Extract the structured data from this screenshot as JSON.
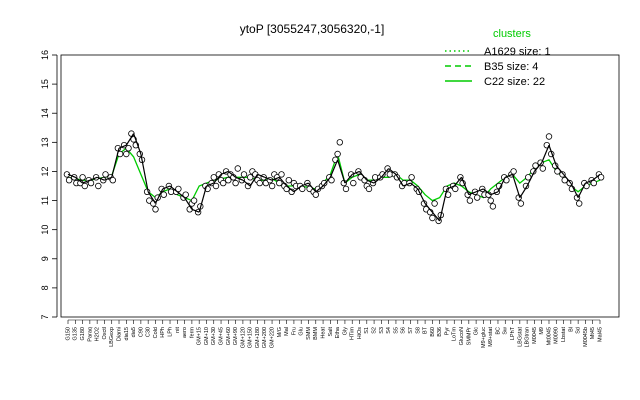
{
  "chart_data": {
    "type": "line",
    "title": "ytoP [3055247,3056320,-1]",
    "xlabel": "",
    "ylabel": "",
    "ylim": [
      7,
      16
    ],
    "yticks": [
      7,
      8,
      9,
      10,
      11,
      12,
      13,
      14,
      15,
      16
    ],
    "grid": false,
    "legend": {
      "title": "clusters",
      "placement": "top-right",
      "color": "#00cc00",
      "entries": [
        {
          "label": "A1629 size: 1",
          "style": "dotted"
        },
        {
          "label": "B35 size: 4",
          "style": "dashed"
        },
        {
          "label": "C22 size: 22",
          "style": "solid"
        }
      ]
    },
    "categories": [
      "G150",
      "G135",
      "G180",
      "Paraq",
      "H2O2",
      "Oxctl",
      "LBGexp",
      "Diami",
      "dia15",
      "dia5",
      "C90",
      "C30",
      "Cold",
      "HPh",
      "LPh",
      "nit",
      "aero",
      "ferm",
      "GM+15",
      "GM+10",
      "GM+30",
      "GM+45",
      "GM+60",
      "GM+90",
      "GM+120",
      "GM+150",
      "GM+180",
      "GM+200",
      "GM+220",
      "M/G",
      "Mal",
      "Fru",
      "Glu",
      "SMM",
      "BMM",
      "Heat",
      "Salt",
      "Etha",
      "Gly",
      "HTim",
      "HiOs",
      "S1",
      "S2",
      "S3",
      "S4",
      "S5",
      "S6",
      "S7",
      "S8",
      "BT",
      "B60",
      "B36",
      "Pyr",
      "LoTm",
      "GlucoN",
      "SMMPr",
      "Glc",
      "M9+gluc",
      "M9+stat",
      "BC",
      "Sw",
      "LPhT",
      "LBGstat",
      "LBGtran",
      "M0045",
      "M9",
      "Mt0045",
      "M0090",
      "Lbstat",
      "Bl",
      "Sd",
      "M0045b",
      "Mt45",
      "Mal45"
    ],
    "series": [
      {
        "name": "C22",
        "values": [
          11.8,
          11.75,
          11.7,
          11.7,
          11.75,
          11.8,
          11.85,
          12.6,
          12.8,
          12.5,
          11.9,
          11.3,
          11.1,
          11.3,
          11.4,
          11.2,
          11.1,
          11.0,
          11.5,
          11.6,
          11.7,
          11.75,
          11.8,
          11.8,
          11.8,
          11.8,
          11.7,
          11.7,
          11.75,
          11.6,
          11.5,
          11.5,
          11.5,
          11.45,
          11.4,
          11.6,
          11.9,
          12.6,
          11.6,
          11.8,
          11.9,
          11.7,
          11.7,
          11.8,
          11.8,
          11.9,
          11.7,
          11.7,
          11.5,
          11.2,
          11.0,
          11.1,
          11.5,
          11.6,
          11.5,
          11.3,
          11.2,
          11.1,
          11.4,
          11.6,
          11.8,
          11.9,
          11.6,
          11.8,
          12.1,
          12.3,
          12.4,
          12.0,
          11.8,
          11.5,
          11.3,
          11.5,
          11.6,
          11.7
        ]
      }
    ],
    "points": [
      {
        "label": "G150",
        "values": [
          11.9,
          11.7
        ]
      },
      {
        "label": "G135",
        "values": [
          11.8,
          11.6
        ]
      },
      {
        "label": "G180",
        "values": [
          11.6,
          11.8,
          11.5
        ]
      },
      {
        "label": "Paraq",
        "values": [
          11.7,
          11.6
        ]
      },
      {
        "label": "H2O2",
        "values": [
          11.8,
          11.5
        ]
      },
      {
        "label": "Oxctl",
        "values": [
          11.7,
          11.9
        ]
      },
      {
        "label": "LBGexp",
        "values": [
          11.8,
          11.7
        ]
      },
      {
        "label": "Diami",
        "values": [
          12.8,
          12.6
        ]
      },
      {
        "label": "dia15",
        "values": [
          12.9,
          12.6,
          12.8
        ]
      },
      {
        "label": "dia5",
        "values": [
          13.3,
          13.1,
          12.9
        ]
      },
      {
        "label": "C90",
        "values": [
          12.6,
          12.4
        ]
      },
      {
        "label": "C30",
        "values": [
          11.3,
          11.0
        ]
      },
      {
        "label": "Cold",
        "values": [
          10.9,
          10.7,
          11.1
        ]
      },
      {
        "label": "HPh",
        "values": [
          11.4,
          11.2
        ]
      },
      {
        "label": "LPh",
        "values": [
          11.5,
          11.3
        ]
      },
      {
        "label": "nit",
        "values": [
          11.3,
          11.4
        ]
      },
      {
        "label": "aero",
        "values": [
          11.1,
          11.2
        ]
      },
      {
        "label": "ferm",
        "values": [
          10.7,
          10.9,
          11.0
        ]
      },
      {
        "label": "GM+15",
        "values": [
          10.6,
          10.8
        ]
      },
      {
        "label": "GM+10",
        "values": [
          11.5,
          11.4
        ]
      },
      {
        "label": "GM+30",
        "values": [
          11.6,
          11.8,
          11.5
        ]
      },
      {
        "label": "GM+45",
        "values": [
          11.9,
          11.7,
          11.6
        ]
      },
      {
        "label": "GM+60",
        "values": [
          12.0,
          11.7,
          11.9
        ]
      },
      {
        "label": "GM+90",
        "values": [
          11.8,
          11.6,
          12.1
        ]
      },
      {
        "label": "GM+120",
        "values": [
          11.7,
          11.9
        ]
      },
      {
        "label": "GM+150",
        "values": [
          11.5,
          11.8,
          12.0
        ]
      },
      {
        "label": "GM+180",
        "values": [
          11.9,
          11.7,
          11.6
        ]
      },
      {
        "label": "GM+200",
        "values": [
          11.8,
          11.6
        ]
      },
      {
        "label": "GM+220",
        "values": [
          11.7,
          11.5,
          11.9
        ]
      },
      {
        "label": "M/G",
        "values": [
          11.8,
          11.6,
          11.9
        ]
      },
      {
        "label": "Mal",
        "values": [
          11.5,
          11.4,
          11.7
        ]
      },
      {
        "label": "Fru",
        "values": [
          11.3,
          11.6,
          11.5
        ]
      },
      {
        "label": "Glu",
        "values": [
          11.5,
          11.4
        ]
      },
      {
        "label": "SMM",
        "values": [
          11.6,
          11.4
        ]
      },
      {
        "label": "BMM",
        "values": [
          11.3,
          11.2,
          11.4
        ]
      },
      {
        "label": "Heat",
        "values": [
          11.5,
          11.6
        ]
      },
      {
        "label": "Salt",
        "values": [
          11.8,
          11.7
        ]
      },
      {
        "label": "Etha",
        "values": [
          12.4,
          12.6,
          13.0
        ]
      },
      {
        "label": "Gly",
        "values": [
          11.6,
          11.4
        ]
      },
      {
        "label": "HTim",
        "values": [
          11.9,
          11.6
        ]
      },
      {
        "label": "HiOs",
        "values": [
          12.0,
          11.8
        ]
      },
      {
        "label": "S1",
        "values": [
          11.7,
          11.5,
          11.4
        ]
      },
      {
        "label": "S2",
        "values": [
          11.6,
          11.8
        ]
      },
      {
        "label": "S3",
        "values": [
          11.8,
          11.9
        ]
      },
      {
        "label": "S4",
        "values": [
          12.1,
          11.9
        ]
      },
      {
        "label": "S5",
        "values": [
          11.9,
          11.8
        ]
      },
      {
        "label": "S6",
        "values": [
          11.5,
          11.6
        ]
      },
      {
        "label": "S7",
        "values": [
          11.6,
          11.8
        ]
      },
      {
        "label": "S8",
        "values": [
          11.4,
          11.3
        ]
      },
      {
        "label": "BT",
        "values": [
          10.9,
          10.7
        ]
      },
      {
        "label": "B60",
        "values": [
          10.6,
          10.4,
          10.9
        ]
      },
      {
        "label": "B36",
        "values": [
          10.3,
          10.5
        ]
      },
      {
        "label": "Pyr",
        "values": [
          11.4,
          11.2
        ]
      },
      {
        "label": "LoTm",
        "values": [
          11.5,
          11.4
        ]
      },
      {
        "label": "GlucoN",
        "values": [
          11.8,
          11.6
        ]
      },
      {
        "label": "SMMPr",
        "values": [
          11.2,
          11.0
        ]
      },
      {
        "label": "Glc",
        "values": [
          11.3,
          11.1
        ]
      },
      {
        "label": "M9+gluc",
        "values": [
          11.4,
          11.2
        ]
      },
      {
        "label": "M9+stat",
        "values": [
          11.2,
          11.0,
          10.8
        ]
      },
      {
        "label": "BC",
        "values": [
          11.3,
          11.5
        ]
      },
      {
        "label": "Sw",
        "values": [
          11.8,
          11.7
        ]
      },
      {
        "label": "LPhT",
        "values": [
          11.9,
          12.0
        ]
      },
      {
        "label": "LBGstat",
        "values": [
          11.1,
          10.9
        ]
      },
      {
        "label": "LBGtran",
        "values": [
          11.5,
          11.8
        ]
      },
      {
        "label": "M0045",
        "values": [
          12.0,
          12.2
        ]
      },
      {
        "label": "M9",
        "values": [
          12.3,
          12.1
        ]
      },
      {
        "label": "Mt0045",
        "values": [
          12.9,
          13.2,
          12.6
        ]
      },
      {
        "label": "M0090",
        "values": [
          12.2,
          12.0
        ]
      },
      {
        "label": "Lbstat",
        "values": [
          11.9,
          11.7
        ]
      },
      {
        "label": "Bl",
        "values": [
          11.6,
          11.4
        ]
      },
      {
        "label": "Sd",
        "values": [
          11.1,
          10.9
        ]
      },
      {
        "label": "M0045b",
        "values": [
          11.6,
          11.5
        ]
      },
      {
        "label": "Mt45",
        "values": [
          11.7,
          11.6
        ]
      },
      {
        "label": "Mal45",
        "values": [
          11.9,
          11.8
        ]
      }
    ]
  }
}
